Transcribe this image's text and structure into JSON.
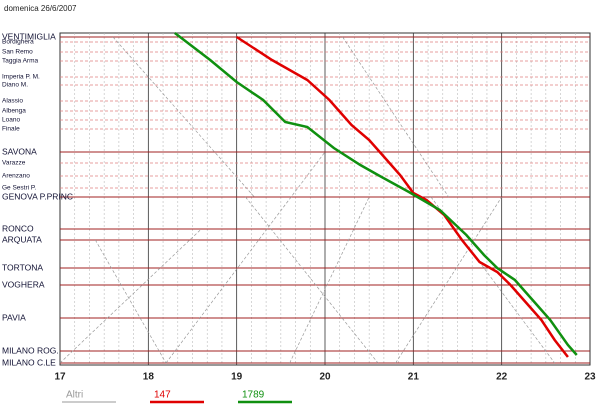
{
  "chart_data": {
    "type": "line",
    "title": "domenica 26/6/2007",
    "xlim": [
      17,
      23
    ],
    "xticks": [
      17,
      18,
      19,
      20,
      21,
      22,
      23
    ],
    "ylim": [
      0,
      332
    ],
    "y_inverted": true,
    "grid": true,
    "yticks": [
      {
        "value": 4,
        "label": "VENTIMIGLIA"
      },
      {
        "value": 9,
        "label": "Bordighera"
      },
      {
        "value": 19,
        "label": "San Remo"
      },
      {
        "value": 28,
        "label": "Taggia Arma"
      },
      {
        "value": 44,
        "label": "Imperia P. M."
      },
      {
        "value": 52,
        "label": "Diano M."
      },
      {
        "value": 68,
        "label": "Alassio"
      },
      {
        "value": 78,
        "label": "Albenga"
      },
      {
        "value": 87,
        "label": "Loano"
      },
      {
        "value": 96,
        "label": "Finale"
      },
      {
        "value": 119,
        "label": "SAVONA"
      },
      {
        "value": 130,
        "label": "Varazze"
      },
      {
        "value": 143,
        "label": "Arenzano"
      },
      {
        "value": 155,
        "label": "Ge Sestri P."
      },
      {
        "value": 164,
        "label": "GENOVA P.PRINC"
      },
      {
        "value": 196,
        "label": "RONCO"
      },
      {
        "value": 207,
        "label": "ARQUATA"
      },
      {
        "value": 235,
        "label": "TORTONA"
      },
      {
        "value": 252,
        "label": "VOGHERA"
      },
      {
        "value": 285,
        "label": "PAVIA"
      },
      {
        "value": 318,
        "label": "MILANO ROG."
      },
      {
        "value": 330,
        "label": "MILANO C.LE"
      }
    ],
    "series": [
      {
        "name": "Altri",
        "color": "#999999",
        "x": [
          17.0,
          18.6,
          null,
          17.6,
          19.2,
          null,
          18.2,
          20.0,
          null,
          19.1,
          20.6,
          null,
          20.2,
          21.4,
          null,
          21.2,
          22.6,
          null,
          17.4,
          18.2,
          null,
          19.6,
          20.5,
          null,
          20.8,
          22.0
        ],
        "values": [
          330,
          196,
          null,
          4,
          164,
          null,
          330,
          119,
          null,
          164,
          330,
          null,
          4,
          164,
          null,
          164,
          330,
          null,
          207,
          330,
          null,
          330,
          164,
          null,
          330,
          164
        ]
      },
      {
        "name": "147",
        "color": "#e00000",
        "x": [
          19.0,
          19.4,
          19.8,
          20.05,
          20.3,
          20.5,
          20.65,
          20.85,
          21.0,
          21.15,
          21.35,
          21.55,
          21.75,
          21.95,
          22.1,
          22.3,
          22.45,
          22.6,
          22.75
        ],
        "values": [
          4,
          27,
          47,
          67,
          92,
          107,
          122,
          142,
          160,
          167,
          182,
          207,
          229,
          239,
          252,
          272,
          287,
          307,
          324
        ]
      },
      {
        "name": "1789",
        "color": "#109010",
        "x": [
          18.3,
          18.7,
          19.0,
          19.3,
          19.55,
          19.8,
          20.1,
          20.4,
          20.6,
          20.95,
          21.3,
          21.6,
          21.8,
          21.95,
          22.15,
          22.35,
          22.55,
          22.75,
          22.85
        ],
        "values": [
          0,
          27,
          49,
          67,
          89,
          94,
          115,
          132,
          142,
          159,
          177,
          202,
          222,
          235,
          247,
          267,
          287,
          312,
          322
        ]
      }
    ]
  }
}
